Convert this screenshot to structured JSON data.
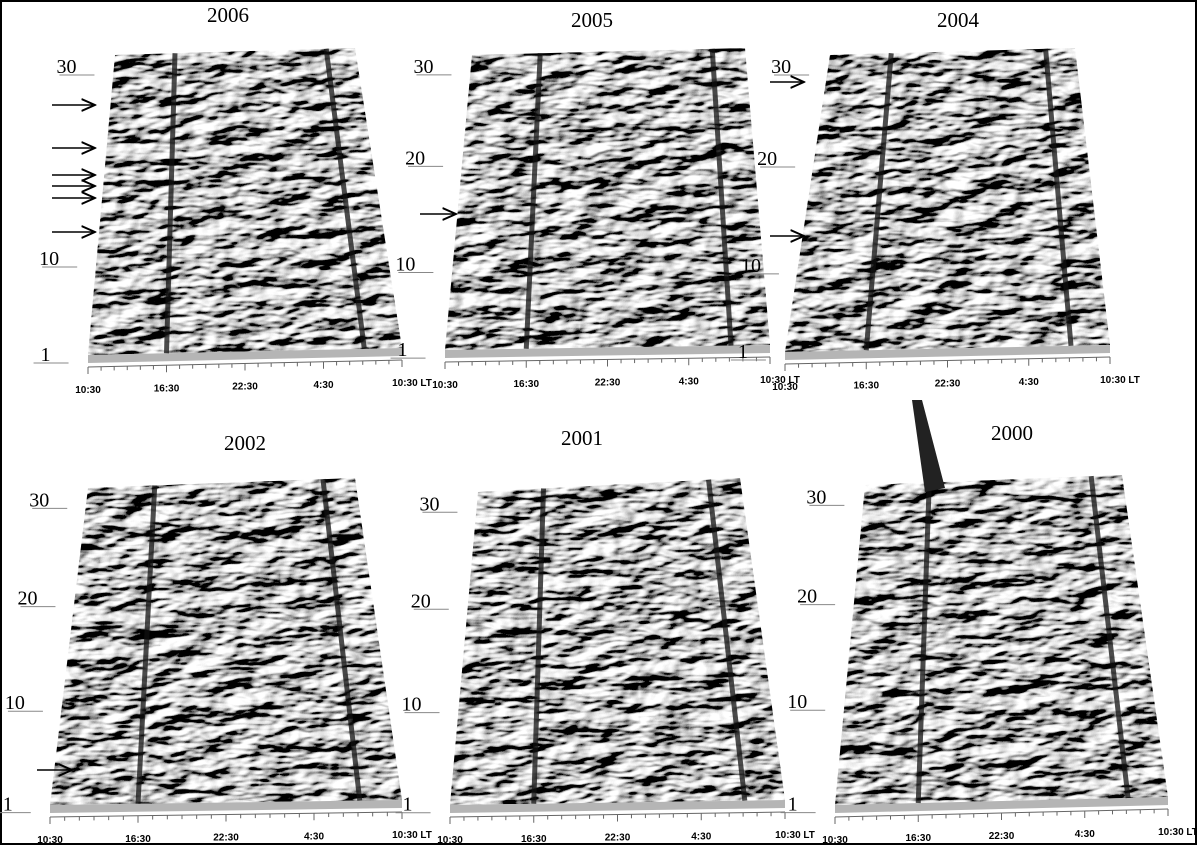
{
  "panels": [
    {
      "title": "2006",
      "y_labels": [
        "30",
        "10",
        "1"
      ],
      "x_labels": [
        "10:30",
        "16:30",
        "22:30",
        "4:30",
        "10:30 LT"
      ]
    },
    {
      "title": "2005",
      "y_labels": [
        "30",
        "20",
        "10",
        "1"
      ],
      "x_labels": [
        "10:30",
        "16:30",
        "22:30",
        "4:30",
        "10:30 LT"
      ]
    },
    {
      "title": "2004",
      "y_labels": [
        "30",
        "20",
        "10",
        "1"
      ],
      "x_labels": [
        "10:30",
        "16:30",
        "22:30",
        "4:30",
        "10:30 LT"
      ]
    },
    {
      "title": "2002",
      "y_labels": [
        "30",
        "20",
        "10",
        "1"
      ],
      "x_labels": [
        "10:30",
        "16:30",
        "22:30",
        "4:30",
        "10:30 LT"
      ]
    },
    {
      "title": "2001",
      "y_labels": [
        "30",
        "20",
        "10",
        "1"
      ],
      "x_labels": [
        "10:30",
        "16:30",
        "22:30",
        "4:30",
        "10:30 LT"
      ]
    },
    {
      "title": "2000",
      "y_labels": [
        "30",
        "20",
        "10",
        "1"
      ],
      "x_labels": [
        "10:30",
        "16:30",
        "22:30",
        "4:30",
        "10:30 LT"
      ]
    }
  ]
}
